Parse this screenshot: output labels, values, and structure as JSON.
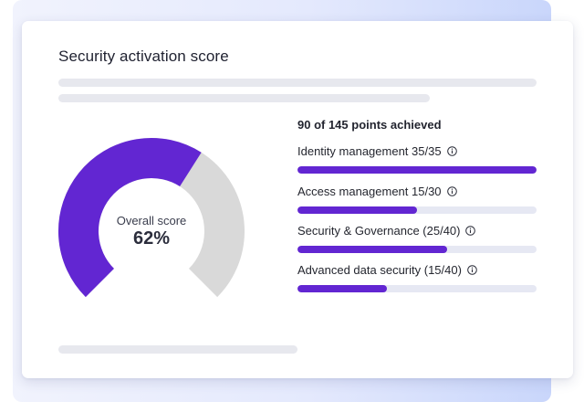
{
  "title": "Security activation score",
  "gauge": {
    "label": "Overall score",
    "value_text": "62%",
    "fraction": 0.62,
    "fill_color": "#6226d2",
    "track_color": "#d9d9d9"
  },
  "summary": "90 of 145 points achieved",
  "metrics": [
    {
      "label": "Identity management 35/35",
      "progress": 1.0,
      "icon": "info-icon"
    },
    {
      "label": "Access management 15/30",
      "progress": 0.5,
      "icon": "info-icon"
    },
    {
      "label": "Security & Governance (25/40)",
      "progress": 0.625,
      "icon": "info-icon"
    },
    {
      "label": "Advanced data security (15/40)",
      "progress": 0.375,
      "icon": "info-icon"
    }
  ],
  "colors": {
    "accent": "#6226d2",
    "track": "#e6e8f3",
    "skeleton": "#e7e8ee"
  }
}
